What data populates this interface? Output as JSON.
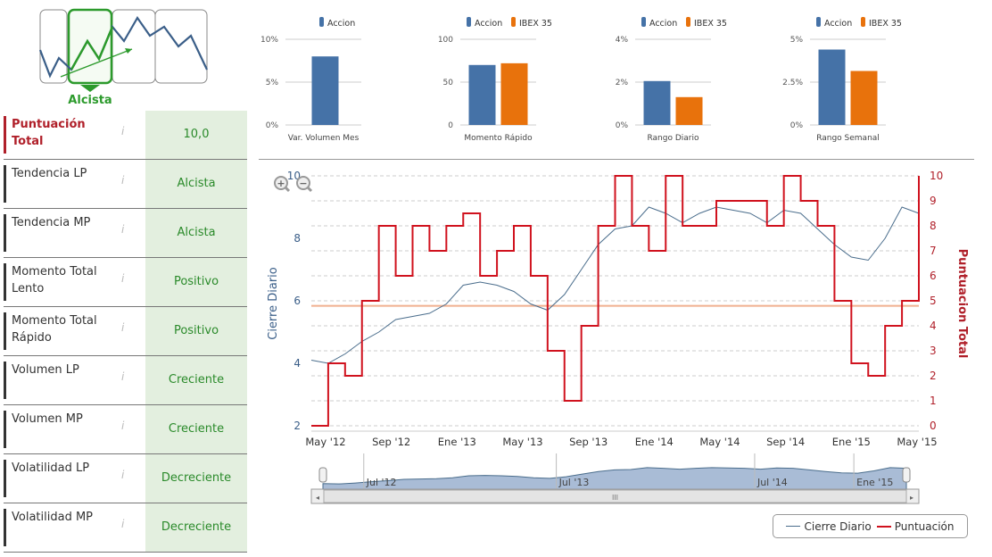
{
  "badge": {
    "label": "Alcista"
  },
  "rows": [
    {
      "label": "Puntuación Total",
      "value": "10,0",
      "highlight": true
    },
    {
      "label": "Tendencia LP",
      "value": "Alcista"
    },
    {
      "label": "Tendencia MP",
      "value": "Alcista"
    },
    {
      "label": "Momento Total Lento",
      "value": "Positivo"
    },
    {
      "label": "Momento Total Rápido",
      "value": "Positivo"
    },
    {
      "label": "Volumen LP",
      "value": "Creciente"
    },
    {
      "label": "Volumen MP",
      "value": "Creciente"
    },
    {
      "label": "Volatilidad LP",
      "value": "Decreciente"
    },
    {
      "label": "Volatilidad MP",
      "value": "Decreciente"
    }
  ],
  "info_icon": "i",
  "colors": {
    "accion": "#4572a7",
    "ibex": "#e8720c",
    "price": "#4a6d8c",
    "score": "#d0121e",
    "ref": "#f0b090"
  },
  "chart_data": [
    {
      "type": "bar",
      "title": "Var. Volumen Mes",
      "legend": [
        "Accion"
      ],
      "yticks": [
        "0%",
        "5%",
        "10%"
      ],
      "ymax": 10,
      "series": [
        {
          "name": "Accion",
          "values": [
            8
          ]
        }
      ]
    },
    {
      "type": "bar",
      "title": "Momento Rápido",
      "legend": [
        "Accion",
        "IBEX 35"
      ],
      "yticks": [
        "0",
        "50",
        "100"
      ],
      "ymax": 100,
      "series": [
        {
          "name": "Accion",
          "values": [
            70
          ]
        },
        {
          "name": "IBEX 35",
          "values": [
            72
          ]
        }
      ]
    },
    {
      "type": "bar",
      "title": "Rango Diario",
      "legend": [
        "Accion",
        "IBEX 35"
      ],
      "yticks": [
        "0%",
        "2%",
        "4%"
      ],
      "ymax": 4,
      "series": [
        {
          "name": "Accion",
          "values": [
            2.05
          ]
        },
        {
          "name": "IBEX 35",
          "values": [
            1.3
          ]
        }
      ]
    },
    {
      "type": "bar",
      "title": "Rango Semanal",
      "legend": [
        "Accion",
        "IBEX 35"
      ],
      "yticks": [
        "0%",
        "2.5%",
        "5%"
      ],
      "ymax": 5,
      "series": [
        {
          "name": "Accion",
          "values": [
            4.4
          ]
        },
        {
          "name": "IBEX 35",
          "values": [
            3.15
          ]
        }
      ]
    },
    {
      "type": "line",
      "ylabel": "Cierre Diario",
      "y2label": "Puntuacion Total",
      "ylim": [
        2,
        10
      ],
      "y2lim": [
        0,
        10
      ],
      "yticks": [
        "2",
        "4",
        "6",
        "8",
        "10"
      ],
      "y2ticks": [
        "0",
        "1",
        "2",
        "3",
        "4",
        "5",
        "6",
        "7",
        "8",
        "9",
        "10"
      ],
      "xticks": [
        "May '12",
        "Sep '12",
        "Ene '13",
        "May '13",
        "Sep '13",
        "Ene '14",
        "May '14",
        "Sep '14",
        "Ene '15",
        "May '15"
      ],
      "reference_score": 4.8,
      "series": [
        {
          "name": "Cierre Diario",
          "values": [
            4.1,
            4.0,
            4.3,
            4.7,
            5.0,
            5.4,
            5.5,
            5.6,
            5.9,
            6.5,
            6.6,
            6.5,
            6.3,
            5.9,
            5.7,
            6.2,
            7.0,
            7.8,
            8.3,
            8.4,
            9.0,
            8.8,
            8.5,
            8.8,
            9.0,
            8.9,
            8.8,
            8.5,
            8.9,
            8.8,
            8.3,
            7.8,
            7.4,
            7.3,
            8.0,
            9.0,
            8.8
          ]
        },
        {
          "name": "Puntuación",
          "values": [
            0,
            2.5,
            2,
            5,
            8,
            6,
            8,
            7,
            8,
            8.5,
            6,
            7,
            8,
            6,
            3,
            1,
            4,
            8,
            10,
            8,
            7,
            10,
            8,
            8,
            9,
            9,
            9,
            8,
            10,
            9,
            8,
            5,
            2.5,
            2,
            4,
            5,
            10
          ]
        }
      ],
      "navigator_ticks": [
        "Jul '12",
        "Jul '13",
        "Jul '14",
        "Ene '15"
      ],
      "scrollbar_grip": "III"
    }
  ],
  "legend": [
    "Cierre Diario",
    "Puntuación"
  ]
}
